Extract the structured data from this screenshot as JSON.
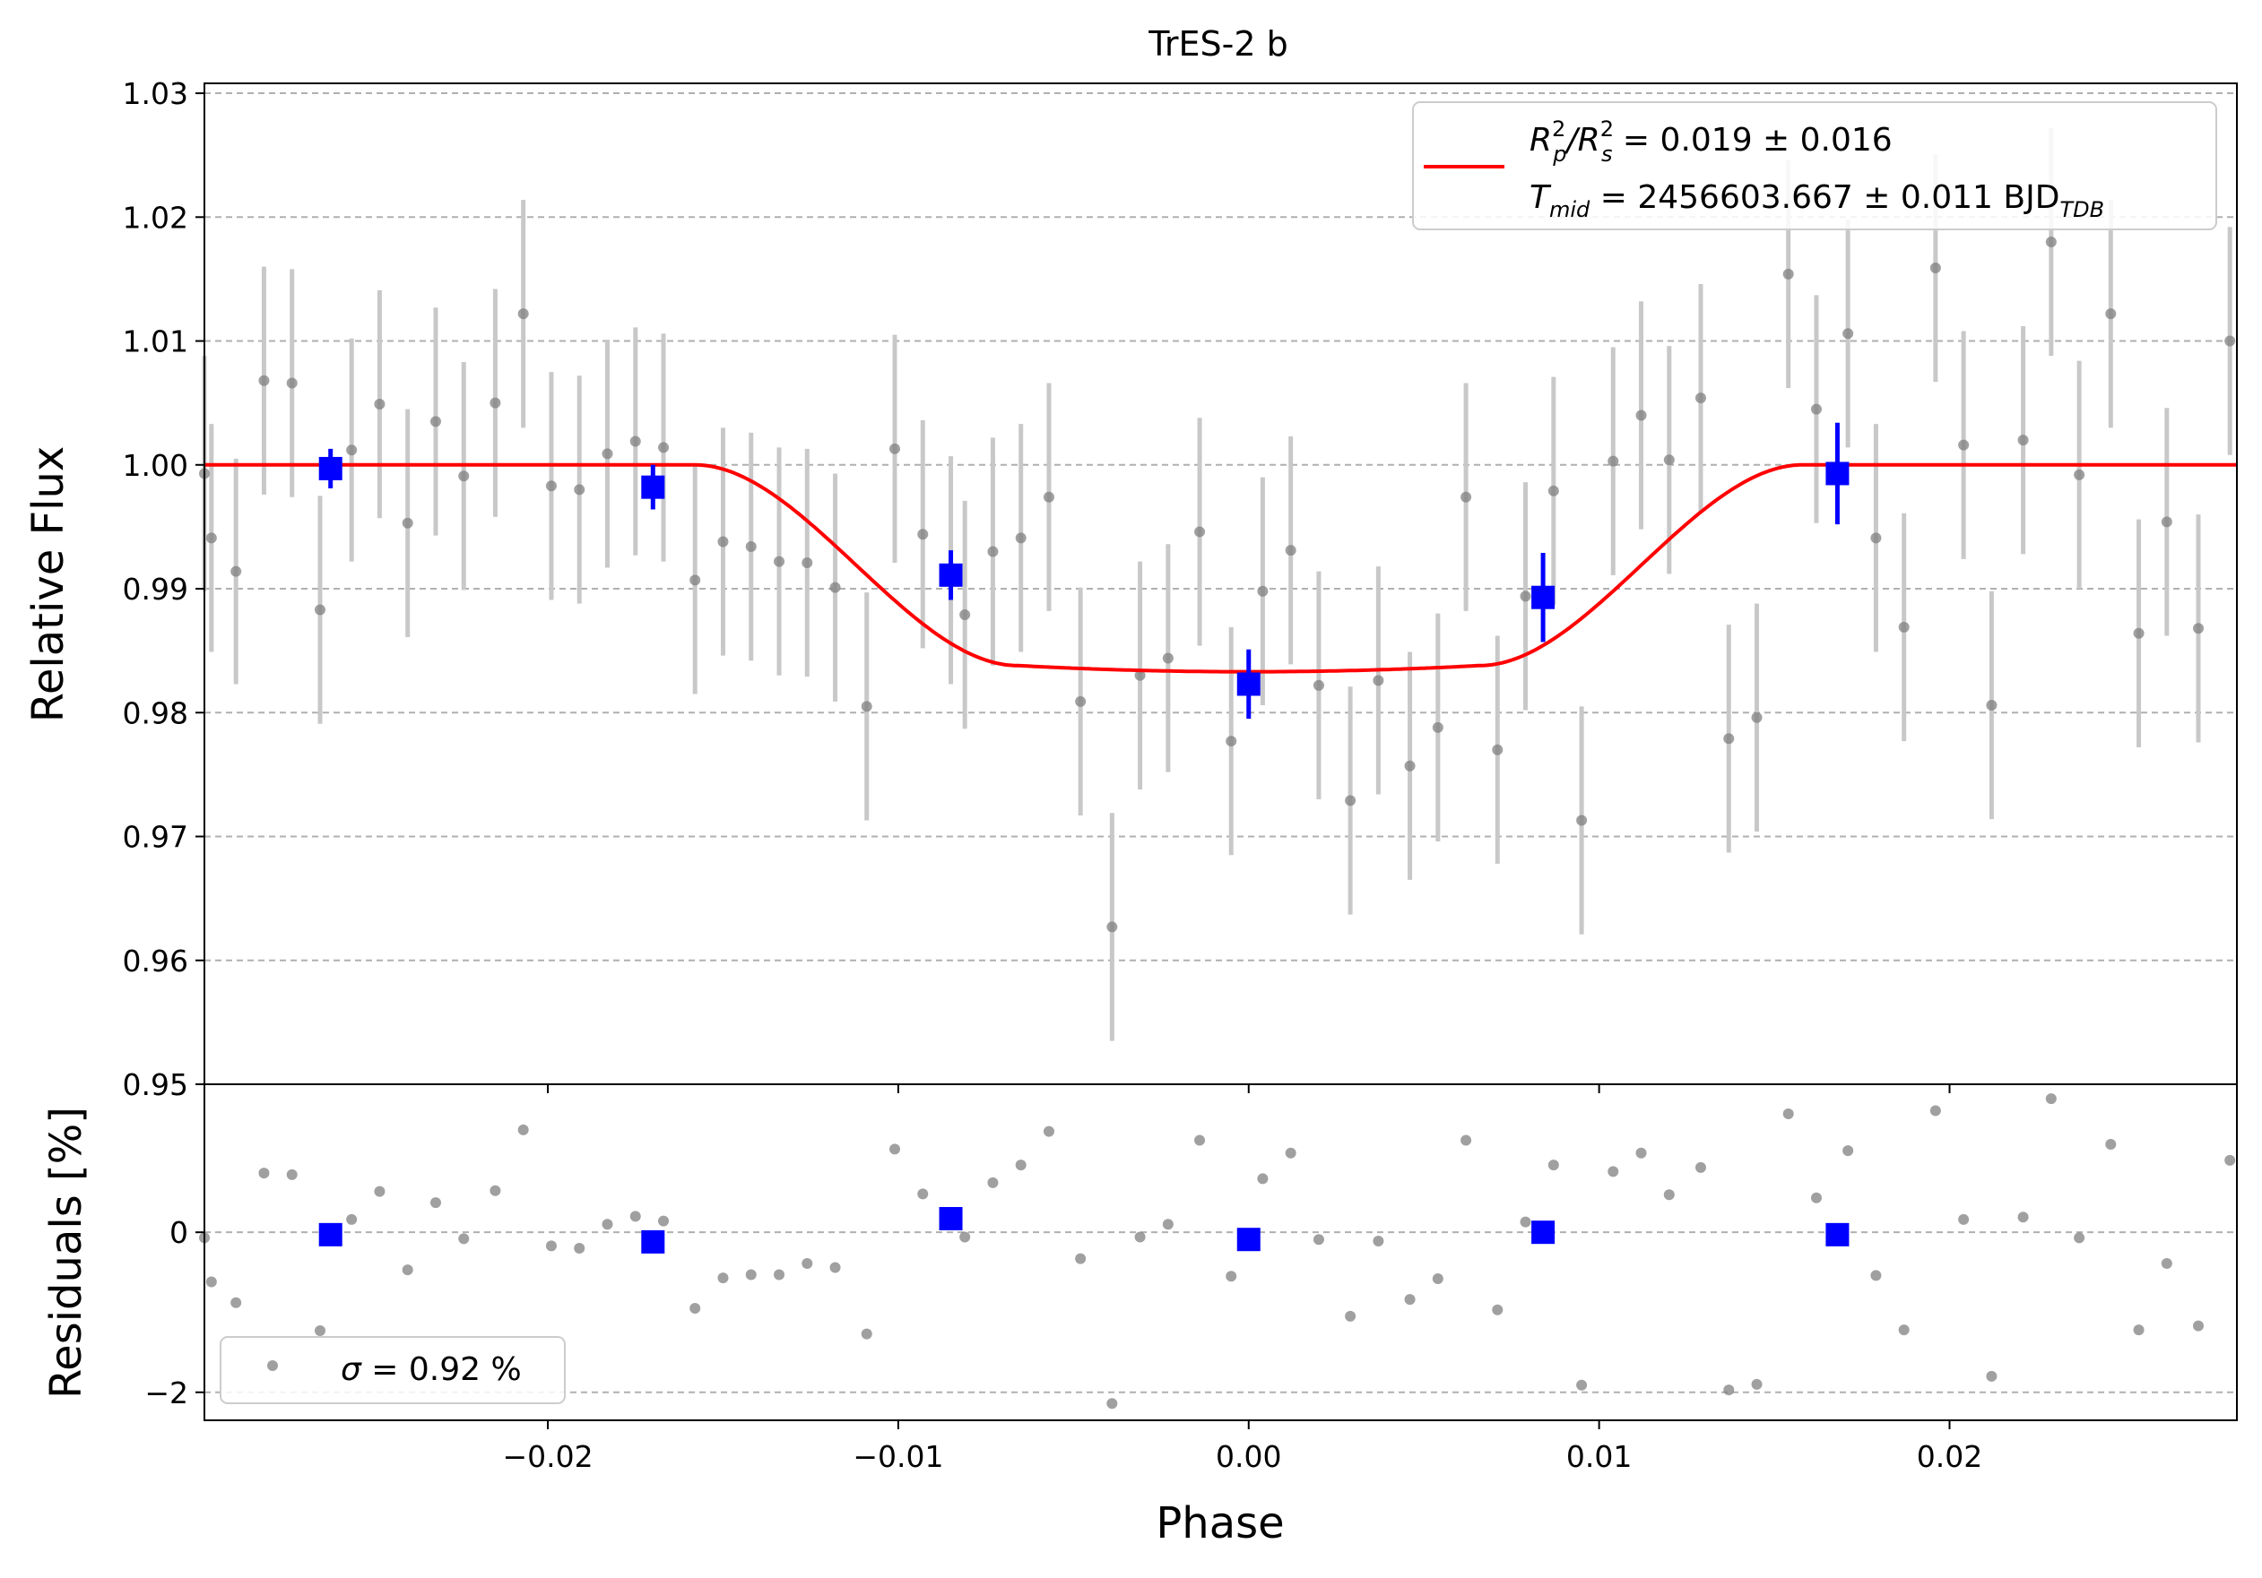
{
  "chart_data": [
    {
      "type": "scatter",
      "title": "TrES-2 b",
      "xlabel": "",
      "ylabel": "Relative Flux",
      "xlim": [
        -0.0298,
        0.0282
      ],
      "ylim": [
        0.95,
        1.0308
      ],
      "grid": "horizontal dashed",
      "xtick_values": [
        -0.02,
        -0.01,
        0.0,
        0.01,
        0.02
      ],
      "ytick_values": [
        0.95,
        0.96,
        0.97,
        0.98,
        0.99,
        1.0,
        1.01,
        1.02,
        1.03
      ],
      "yticks": [
        "0.95",
        "0.96",
        "0.97",
        "0.98",
        "0.99",
        "1.00",
        "1.01",
        "1.02",
        "1.03"
      ],
      "legend": {
        "placement": "top-right",
        "line1": {
          "pre": "R",
          "sup1": "2",
          "sub1": "p",
          "mid": "/R",
          "sup2": "2",
          "sub2": "s",
          "post": " = 0.019 ± 0.016"
        },
        "line2": {
          "pre": "T",
          "sub1": "mid",
          "post": " = 2456603.667 ± 0.011 BJD",
          "sub2": "TDB"
        }
      },
      "colors": {
        "model": "#ff0000",
        "binned": "#0000ff",
        "points": "#808080",
        "errorbars": "#c8c8c8"
      },
      "model": {
        "baseline": 1.0,
        "depth": 0.0167,
        "t1": -0.0158,
        "t2": -0.0066,
        "t3": 0.0066,
        "t4": 0.0158
      },
      "data_points": [
        {
          "x": -0.0298,
          "y": 0.9993,
          "err": 0.0095
        },
        {
          "x": -0.0296,
          "y": 0.9941,
          "err": 0.0092
        },
        {
          "x": -0.0289,
          "y": 0.9914,
          "err": 0.0091
        },
        {
          "x": -0.0281,
          "y": 1.0068,
          "err": 0.0092
        },
        {
          "x": -0.0273,
          "y": 1.0066,
          "err": 0.0092
        },
        {
          "x": -0.0265,
          "y": 0.9883,
          "err": 0.0092
        },
        {
          "x": -0.0256,
          "y": 1.0012,
          "err": 0.009
        },
        {
          "x": -0.0248,
          "y": 1.0049,
          "err": 0.0092
        },
        {
          "x": -0.024,
          "y": 0.9953,
          "err": 0.0092
        },
        {
          "x": -0.0232,
          "y": 1.0035,
          "err": 0.0092
        },
        {
          "x": -0.0224,
          "y": 0.9991,
          "err": 0.0092
        },
        {
          "x": -0.0215,
          "y": 1.005,
          "err": 0.0092
        },
        {
          "x": -0.0207,
          "y": 1.0122,
          "err": 0.0092
        },
        {
          "x": -0.0199,
          "y": 0.9983,
          "err": 0.0092
        },
        {
          "x": -0.0191,
          "y": 0.998,
          "err": 0.0092
        },
        {
          "x": -0.0183,
          "y": 1.0009,
          "err": 0.0092
        },
        {
          "x": -0.0175,
          "y": 1.0019,
          "err": 0.0092
        },
        {
          "x": -0.0167,
          "y": 1.0014,
          "err": 0.0092
        },
        {
          "x": -0.0158,
          "y": 0.9907,
          "err": 0.0092
        },
        {
          "x": -0.015,
          "y": 0.9938,
          "err": 0.0092
        },
        {
          "x": -0.0142,
          "y": 0.9934,
          "err": 0.0092
        },
        {
          "x": -0.0134,
          "y": 0.9922,
          "err": 0.0092
        },
        {
          "x": -0.0126,
          "y": 0.9921,
          "err": 0.0092
        },
        {
          "x": -0.0118,
          "y": 0.9901,
          "err": 0.0092
        },
        {
          "x": -0.0109,
          "y": 0.9805,
          "err": 0.0092
        },
        {
          "x": -0.0101,
          "y": 1.0013,
          "err": 0.0092
        },
        {
          "x": -0.0093,
          "y": 0.9944,
          "err": 0.0092
        },
        {
          "x": -0.0085,
          "y": 0.9915,
          "err": 0.0092
        },
        {
          "x": -0.0081,
          "y": 0.9879,
          "err": 0.0092
        },
        {
          "x": -0.0073,
          "y": 0.993,
          "err": 0.0092
        },
        {
          "x": -0.0065,
          "y": 0.9941,
          "err": 0.0092
        },
        {
          "x": -0.0057,
          "y": 0.9974,
          "err": 0.0092
        },
        {
          "x": -0.0048,
          "y": 0.9809,
          "err": 0.0092
        },
        {
          "x": -0.0039,
          "y": 0.9627,
          "err": 0.0092
        },
        {
          "x": -0.0031,
          "y": 0.983,
          "err": 0.0092
        },
        {
          "x": -0.0023,
          "y": 0.9844,
          "err": 0.0092
        },
        {
          "x": -0.0014,
          "y": 0.9946,
          "err": 0.0092
        },
        {
          "x": -0.0005,
          "y": 0.9777,
          "err": 0.0092
        },
        {
          "x": 0.0004,
          "y": 0.9898,
          "err": 0.0092
        },
        {
          "x": 0.0012,
          "y": 0.9931,
          "err": 0.0092
        },
        {
          "x": 0.002,
          "y": 0.9822,
          "err": 0.0092
        },
        {
          "x": 0.0029,
          "y": 0.9729,
          "err": 0.0092
        },
        {
          "x": 0.0037,
          "y": 0.9826,
          "err": 0.0092
        },
        {
          "x": 0.0046,
          "y": 0.9757,
          "err": 0.0092
        },
        {
          "x": 0.0054,
          "y": 0.9788,
          "err": 0.0092
        },
        {
          "x": 0.0062,
          "y": 0.9974,
          "err": 0.0092
        },
        {
          "x": 0.0071,
          "y": 0.977,
          "err": 0.0092
        },
        {
          "x": 0.0079,
          "y": 0.9894,
          "err": 0.0092
        },
        {
          "x": 0.0087,
          "y": 0.9979,
          "err": 0.0092
        },
        {
          "x": 0.0095,
          "y": 0.9713,
          "err": 0.0092
        },
        {
          "x": 0.0104,
          "y": 1.0003,
          "err": 0.0092
        },
        {
          "x": 0.0112,
          "y": 1.004,
          "err": 0.0092
        },
        {
          "x": 0.012,
          "y": 1.0004,
          "err": 0.0092
        },
        {
          "x": 0.0129,
          "y": 1.0054,
          "err": 0.0092
        },
        {
          "x": 0.0137,
          "y": 0.9779,
          "err": 0.0092
        },
        {
          "x": 0.0145,
          "y": 0.9796,
          "err": 0.0092
        },
        {
          "x": 0.0154,
          "y": 1.0154,
          "err": 0.0092
        },
        {
          "x": 0.0162,
          "y": 1.0045,
          "err": 0.0092
        },
        {
          "x": 0.0171,
          "y": 1.0106,
          "err": 0.0092
        },
        {
          "x": 0.0179,
          "y": 0.9941,
          "err": 0.0092
        },
        {
          "x": 0.0187,
          "y": 0.9869,
          "err": 0.0092
        },
        {
          "x": 0.0196,
          "y": 1.0159,
          "err": 0.0092
        },
        {
          "x": 0.0204,
          "y": 1.0016,
          "err": 0.0092
        },
        {
          "x": 0.0212,
          "y": 0.9806,
          "err": 0.0092
        },
        {
          "x": 0.0221,
          "y": 1.002,
          "err": 0.0092
        },
        {
          "x": 0.0229,
          "y": 1.018,
          "err": 0.0092
        },
        {
          "x": 0.0237,
          "y": 0.9992,
          "err": 0.0092
        },
        {
          "x": 0.0246,
          "y": 1.0122,
          "err": 0.0092
        },
        {
          "x": 0.0254,
          "y": 0.9864,
          "err": 0.0092
        },
        {
          "x": 0.0262,
          "y": 0.9954,
          "err": 0.0092
        },
        {
          "x": 0.0271,
          "y": 0.9868,
          "err": 0.0092
        },
        {
          "x": 0.028,
          "y": 1.01,
          "err": 0.0092
        }
      ],
      "binned": [
        {
          "x": -0.0262,
          "y": 0.9997,
          "err": 0.0016
        },
        {
          "x": -0.017,
          "y": 0.9982,
          "err": 0.0018
        },
        {
          "x": -0.0085,
          "y": 0.9911,
          "err": 0.002
        },
        {
          "x": 0.0,
          "y": 0.9823,
          "err": 0.0028
        },
        {
          "x": 0.0084,
          "y": 0.9893,
          "err": 0.0036
        },
        {
          "x": 0.0168,
          "y": 0.9993,
          "err": 0.0041
        }
      ]
    },
    {
      "type": "scatter",
      "xlabel": "Phase",
      "ylabel": "Residuals [%]",
      "xlim": [
        -0.0298,
        0.0282
      ],
      "ylim": [
        -2.35,
        1.85
      ],
      "grid": "horizontal dashed",
      "xtick_values": [
        -0.02,
        -0.01,
        0.0,
        0.01,
        0.02
      ],
      "xticks": [
        "−0.02",
        "−0.01",
        "0.00",
        "0.01",
        "0.02"
      ],
      "ytick_values": [
        -2,
        0
      ],
      "yticks": [
        "−2",
        "0"
      ],
      "legend": {
        "placement": "bottom-left",
        "label": " = 0.92 %",
        "symbol": "σ"
      },
      "residuals": [
        {
          "x": -0.0298,
          "y": -0.07
        },
        {
          "x": -0.0296,
          "y": -0.62
        },
        {
          "x": -0.0289,
          "y": -0.88
        },
        {
          "x": -0.0281,
          "y": 0.74
        },
        {
          "x": -0.0273,
          "y": 0.72
        },
        {
          "x": -0.0265,
          "y": -1.23
        },
        {
          "x": -0.0256,
          "y": 0.16
        },
        {
          "x": -0.0248,
          "y": 0.51
        },
        {
          "x": -0.024,
          "y": -0.47
        },
        {
          "x": -0.0232,
          "y": 0.37
        },
        {
          "x": -0.0224,
          "y": -0.08
        },
        {
          "x": -0.0215,
          "y": 0.52
        },
        {
          "x": -0.0207,
          "y": 1.28
        },
        {
          "x": -0.0199,
          "y": -0.17
        },
        {
          "x": -0.0191,
          "y": -0.2
        },
        {
          "x": -0.0183,
          "y": 0.1
        },
        {
          "x": -0.0175,
          "y": 0.2
        },
        {
          "x": -0.0167,
          "y": 0.14
        },
        {
          "x": -0.0158,
          "y": -0.95
        },
        {
          "x": -0.015,
          "y": -0.57
        },
        {
          "x": -0.0142,
          "y": -0.53
        },
        {
          "x": -0.0134,
          "y": -0.53
        },
        {
          "x": -0.0126,
          "y": -0.39
        },
        {
          "x": -0.0118,
          "y": -0.44
        },
        {
          "x": -0.0109,
          "y": -1.27
        },
        {
          "x": -0.0101,
          "y": 1.04
        },
        {
          "x": -0.0093,
          "y": 0.48
        },
        {
          "x": -0.0085,
          "y": 0.2
        },
        {
          "x": -0.0081,
          "y": -0.06
        },
        {
          "x": -0.0073,
          "y": 0.62
        },
        {
          "x": -0.0065,
          "y": 0.84
        },
        {
          "x": -0.0057,
          "y": 1.26
        },
        {
          "x": -0.0048,
          "y": -0.33
        },
        {
          "x": -0.0039,
          "y": -2.14
        },
        {
          "x": -0.0031,
          "y": -0.06
        },
        {
          "x": -0.0023,
          "y": 0.1
        },
        {
          "x": -0.0014,
          "y": 1.15
        },
        {
          "x": -0.0005,
          "y": -0.55
        },
        {
          "x": 0.0004,
          "y": 0.67
        },
        {
          "x": 0.0012,
          "y": 0.99
        },
        {
          "x": 0.002,
          "y": -0.09
        },
        {
          "x": 0.0029,
          "y": -1.05
        },
        {
          "x": 0.0037,
          "y": -0.11
        },
        {
          "x": 0.0046,
          "y": -0.84
        },
        {
          "x": 0.0054,
          "y": -0.58
        },
        {
          "x": 0.0062,
          "y": 1.15
        },
        {
          "x": 0.0071,
          "y": -0.97
        },
        {
          "x": 0.0079,
          "y": 0.13
        },
        {
          "x": 0.0087,
          "y": 0.84
        },
        {
          "x": 0.0095,
          "y": -1.91
        },
        {
          "x": 0.0104,
          "y": 0.76
        },
        {
          "x": 0.0112,
          "y": 0.99
        },
        {
          "x": 0.012,
          "y": 0.47
        },
        {
          "x": 0.0129,
          "y": 0.81
        },
        {
          "x": 0.0137,
          "y": -1.97
        },
        {
          "x": 0.0145,
          "y": -1.9
        },
        {
          "x": 0.0154,
          "y": 1.48
        },
        {
          "x": 0.0162,
          "y": 0.43
        },
        {
          "x": 0.0171,
          "y": 1.02
        },
        {
          "x": 0.0179,
          "y": -0.54
        },
        {
          "x": 0.0187,
          "y": -1.22
        },
        {
          "x": 0.0196,
          "y": 1.52
        },
        {
          "x": 0.0204,
          "y": 0.16
        },
        {
          "x": 0.0212,
          "y": -1.8
        },
        {
          "x": 0.0221,
          "y": 0.19
        },
        {
          "x": 0.0229,
          "y": 1.67
        },
        {
          "x": 0.0237,
          "y": -0.07
        },
        {
          "x": 0.0246,
          "y": 1.1
        },
        {
          "x": 0.0254,
          "y": -1.22
        },
        {
          "x": 0.0262,
          "y": -0.39
        },
        {
          "x": 0.0271,
          "y": -1.17
        },
        {
          "x": 0.028,
          "y": 0.9
        }
      ],
      "binned_residuals": [
        {
          "x": -0.0262,
          "y": -0.03
        },
        {
          "x": -0.017,
          "y": -0.12
        },
        {
          "x": -0.0085,
          "y": 0.17
        },
        {
          "x": 0.0,
          "y": -0.09
        },
        {
          "x": 0.0084,
          "y": 0.0
        },
        {
          "x": 0.0168,
          "y": -0.03
        }
      ]
    }
  ]
}
